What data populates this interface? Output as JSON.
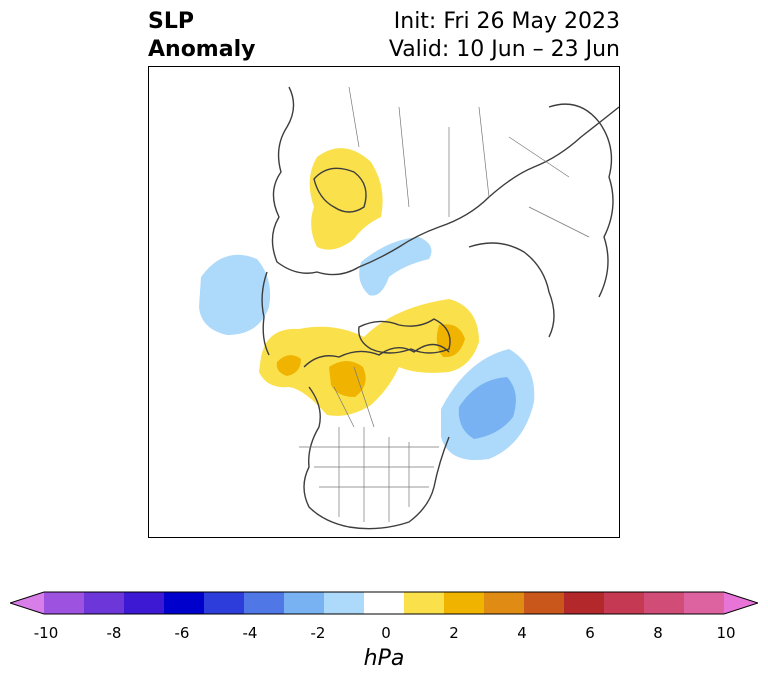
{
  "title": {
    "left_line1": "SLP",
    "left_line2": "Anomaly",
    "right_line1": "Init: Fri 26 May 2023",
    "right_line2": "Valid: 10 Jun – 23 Jun"
  },
  "colorbar": {
    "unit": "hPa",
    "ticks": [
      "-10",
      "-8",
      "-6",
      "-4",
      "-2",
      "0",
      "2",
      "4",
      "6",
      "8",
      "10"
    ],
    "colors": [
      "#d77ee8",
      "#9e52e0",
      "#6c36d8",
      "#3d19d4",
      "#0000cd",
      "#2c3ddc",
      "#4f78e6",
      "#78b2f2",
      "#add9fa",
      "#ffffff",
      "#fae04b",
      "#f0b400",
      "#e08c14",
      "#c9571c",
      "#b3282a",
      "#c53a52",
      "#d14c77",
      "#dc62a0",
      "#e874d8"
    ]
  },
  "map": {
    "projection": "north-polar-stereographic",
    "positive_anomalies": [
      "Northern Europe",
      "Northeast Pacific",
      "Canadian Arctic Archipelago",
      "Western Canada"
    ],
    "negative_anomalies": [
      "North Atlantic off Newfoundland",
      "Kara Sea",
      "Aleutians"
    ]
  }
}
